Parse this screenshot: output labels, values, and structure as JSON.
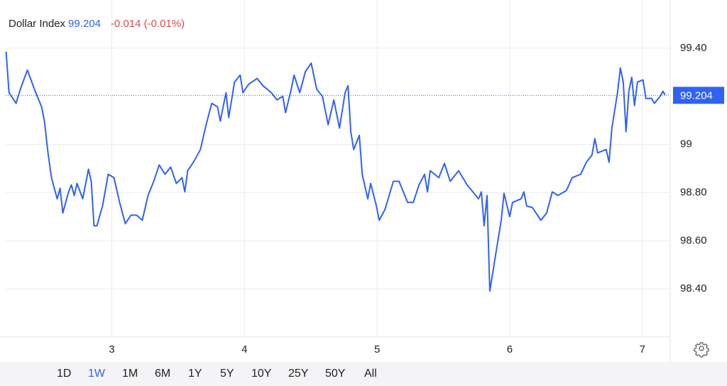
{
  "header": {
    "title": "Dollar Index",
    "change": "-0.014 (-0.01%)"
  },
  "chart_data": {
    "type": "line",
    "x": [
      2.203,
      2.225,
      2.278,
      2.31,
      2.364,
      2.417,
      2.471,
      2.492,
      2.519,
      2.545,
      2.588,
      2.61,
      2.631,
      2.674,
      2.695,
      2.717,
      2.738,
      2.781,
      2.824,
      2.845,
      2.866,
      2.888,
      2.93,
      2.973,
      3.016,
      3.059,
      3.102,
      3.144,
      3.187,
      3.23,
      3.273,
      3.316,
      3.358,
      3.401,
      3.444,
      3.487,
      3.529,
      3.551,
      3.572,
      3.615,
      3.668,
      3.711,
      3.754,
      3.797,
      3.818,
      3.861,
      3.882,
      3.925,
      3.968,
      3.989,
      4.032,
      4.096,
      4.139,
      4.203,
      4.246,
      4.289,
      4.31,
      4.353,
      4.374,
      4.417,
      4.46,
      4.503,
      4.545,
      4.588,
      4.631,
      4.674,
      4.717,
      4.759,
      4.781,
      4.802,
      4.824,
      4.866,
      4.888,
      4.93,
      4.952,
      4.995,
      5.016,
      5.059,
      5.123,
      5.166,
      5.23,
      5.273,
      5.316,
      5.358,
      5.38,
      5.401,
      5.465,
      5.508,
      5.551,
      5.615,
      5.679,
      5.722,
      5.765,
      5.786,
      5.807,
      5.829,
      5.85,
      5.893,
      5.936,
      5.957,
      6.0,
      6.021,
      6.086,
      6.107,
      6.128,
      6.171,
      6.235,
      6.278,
      6.321,
      6.364,
      6.428,
      6.471,
      6.535,
      6.578,
      6.62,
      6.642,
      6.663,
      6.727,
      6.749,
      6.77,
      6.813,
      6.834,
      6.856,
      6.877,
      6.898,
      6.92,
      6.941,
      6.963,
      7.005,
      7.027,
      7.07,
      7.091,
      7.134,
      7.155,
      7.171
    ],
    "series": [
      {
        "color": "#3062f5",
        "values": [
          99.385,
          99.215,
          99.171,
          99.229,
          99.309,
          99.229,
          99.156,
          99.097,
          98.965,
          98.862,
          98.774,
          98.818,
          98.715,
          98.803,
          98.832,
          98.788,
          98.838,
          98.774,
          98.897,
          98.847,
          98.662,
          98.662,
          98.744,
          98.876,
          98.862,
          98.759,
          98.671,
          98.706,
          98.706,
          98.685,
          98.788,
          98.847,
          98.915,
          98.876,
          98.906,
          98.838,
          98.862,
          98.803,
          98.891,
          98.926,
          98.979,
          99.082,
          99.171,
          99.156,
          99.097,
          99.215,
          99.112,
          99.259,
          99.288,
          99.215,
          99.25,
          99.274,
          99.244,
          99.215,
          99.185,
          99.2,
          99.132,
          99.229,
          99.288,
          99.215,
          99.303,
          99.338,
          99.229,
          99.2,
          99.082,
          99.185,
          99.068,
          99.215,
          99.244,
          99.053,
          98.979,
          99.038,
          98.876,
          98.774,
          98.838,
          98.744,
          98.685,
          98.729,
          98.847,
          98.847,
          98.759,
          98.759,
          98.832,
          98.876,
          98.803,
          98.891,
          98.862,
          98.921,
          98.847,
          98.891,
          98.832,
          98.803,
          98.774,
          98.803,
          98.662,
          98.788,
          98.391,
          98.538,
          98.685,
          98.797,
          98.7,
          98.759,
          98.774,
          98.803,
          98.744,
          98.738,
          98.685,
          98.715,
          98.803,
          98.788,
          98.809,
          98.862,
          98.876,
          98.926,
          98.956,
          99.024,
          98.965,
          98.979,
          98.926,
          99.068,
          99.215,
          99.318,
          99.259,
          99.053,
          99.221,
          99.279,
          99.162,
          99.259,
          99.268,
          99.191,
          99.191,
          99.171,
          99.2,
          99.221,
          99.206
        ]
      }
    ],
    "last_value": 99.204,
    "xlim": [
      2.2,
      7.21
    ],
    "xticks": [
      3,
      4,
      5,
      6,
      7
    ],
    "ylim": [
      98.2,
      99.6
    ],
    "yticks": [
      {
        "value": 98.4,
        "label": "98.40"
      },
      {
        "value": 98.6,
        "label": "98.60"
      },
      {
        "value": 98.8,
        "label": "98.80"
      },
      99,
      {
        "value": 99.4,
        "label": "99.40"
      }
    ],
    "grid": true
  },
  "range_buttons": [
    {
      "label": "1D"
    },
    {
      "label": "1W",
      "selected": true
    },
    {
      "label": "1M"
    },
    {
      "label": "6M"
    },
    {
      "label": "1Y"
    },
    {
      "label": "5Y"
    },
    {
      "label": "10Y"
    },
    {
      "label": "25Y"
    },
    {
      "label": "50Y"
    },
    {
      "label": "All"
    }
  ]
}
